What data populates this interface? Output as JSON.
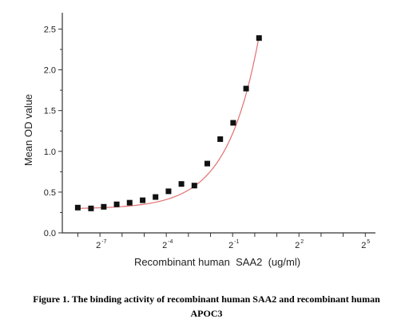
{
  "chart_data": {
    "type": "scatter",
    "xlabel": "Recombinant human  SAA2  (ug/ml)",
    "ylabel": "Mean OD value",
    "x_scale": "log2",
    "x_ticks": [
      {
        "base": "2",
        "exp": "-7",
        "value": 0.0078125
      },
      {
        "base": "2",
        "exp": "-4",
        "value": 0.0625
      },
      {
        "base": "2",
        "exp": "-1",
        "value": 0.5
      },
      {
        "base": "2",
        "exp": "2",
        "value": 4
      },
      {
        "base": "2",
        "exp": "5",
        "value": 32
      }
    ],
    "xlim": [
      0.0024,
      44
    ],
    "ylim": [
      0,
      2.7
    ],
    "y_ticks": [
      "0.0",
      "0.5",
      "1.0",
      "1.5",
      "2.0",
      "2.5"
    ],
    "y_tick_values": [
      0,
      0.5,
      1.0,
      1.5,
      2.0,
      2.5
    ],
    "grid": false,
    "series": [
      {
        "color": "#111111",
        "marker": "square",
        "points": [
          {
            "x": 0.0039,
            "y": 0.31
          },
          {
            "x": 0.0059,
            "y": 0.3
          },
          {
            "x": 0.0088,
            "y": 0.32
          },
          {
            "x": 0.0132,
            "y": 0.35
          },
          {
            "x": 0.0198,
            "y": 0.37
          },
          {
            "x": 0.0298,
            "y": 0.4
          },
          {
            "x": 0.0446,
            "y": 0.44
          },
          {
            "x": 0.067,
            "y": 0.51
          },
          {
            "x": 0.1004,
            "y": 0.6
          },
          {
            "x": 0.1507,
            "y": 0.58
          },
          {
            "x": 0.226,
            "y": 0.85
          },
          {
            "x": 0.3391,
            "y": 1.15
          },
          {
            "x": 0.5086,
            "y": 1.35
          },
          {
            "x": 0.763,
            "y": 1.77
          },
          {
            "x": 1.1445,
            "y": 2.39
          }
        ]
      }
    ],
    "fit": {
      "color": "#e07070",
      "type": "exponential",
      "a": 0.2935,
      "b": 0.002,
      "c": 1.83
    }
  },
  "caption": {
    "line1": "Figure 1. The binding activity of recombinant human SAA2 and recombinant human",
    "line2": "APOC3"
  }
}
